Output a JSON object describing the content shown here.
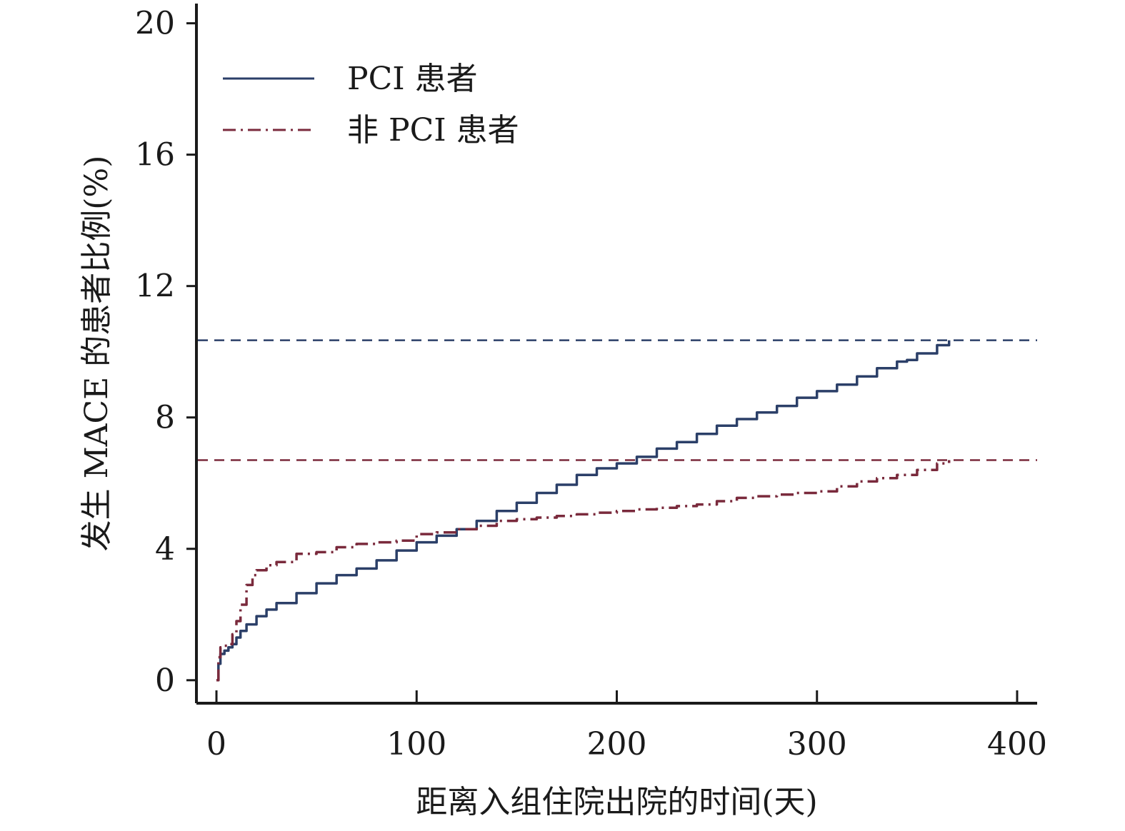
{
  "chart_data": {
    "type": "line",
    "title": "",
    "xlabel": "距离入组住院出院的时间(天)",
    "ylabel": "发生 MACE 的患者比例(%)",
    "xlim": [
      -10,
      410
    ],
    "ylim": [
      -0.7,
      20.6
    ],
    "xticks": [
      0,
      100,
      200,
      300,
      400
    ],
    "yticks": [
      0,
      4,
      8,
      12,
      16,
      20
    ],
    "grid": false,
    "legend_position": "top-left",
    "series": [
      {
        "name": "PCI 患者",
        "color": "#2b3f68",
        "style": "solid",
        "x": [
          0,
          1,
          2,
          4,
          6,
          8,
          10,
          12,
          15,
          20,
          25,
          30,
          40,
          50,
          60,
          70,
          80,
          90,
          100,
          110,
          120,
          130,
          140,
          150,
          160,
          170,
          180,
          190,
          200,
          210,
          220,
          230,
          240,
          250,
          260,
          270,
          280,
          290,
          300,
          310,
          320,
          330,
          340,
          345,
          350,
          360,
          366
        ],
        "y": [
          0,
          0.5,
          0.8,
          0.9,
          1.0,
          1.1,
          1.3,
          1.5,
          1.7,
          1.95,
          2.15,
          2.35,
          2.65,
          2.95,
          3.2,
          3.4,
          3.65,
          3.95,
          4.2,
          4.4,
          4.6,
          4.85,
          5.15,
          5.4,
          5.7,
          5.95,
          6.25,
          6.45,
          6.6,
          6.8,
          7.05,
          7.25,
          7.5,
          7.75,
          7.95,
          8.15,
          8.35,
          8.6,
          8.8,
          9.0,
          9.25,
          9.5,
          9.7,
          9.75,
          9.95,
          10.2,
          10.35
        ]
      },
      {
        "name": "非 PCI 患者",
        "color": "#7a2a3c",
        "style": "dashdot",
        "x": [
          0,
          1,
          2,
          4,
          6,
          8,
          10,
          12,
          15,
          18,
          20,
          25,
          30,
          40,
          50,
          60,
          70,
          80,
          90,
          100,
          110,
          120,
          130,
          140,
          150,
          160,
          170,
          180,
          190,
          200,
          210,
          220,
          230,
          240,
          250,
          260,
          270,
          280,
          290,
          300,
          310,
          320,
          330,
          340,
          350,
          360,
          366
        ],
        "y": [
          0,
          0.7,
          1.0,
          1.05,
          1.1,
          1.4,
          1.8,
          2.3,
          2.9,
          3.2,
          3.35,
          3.5,
          3.6,
          3.85,
          3.9,
          4.05,
          4.15,
          4.2,
          4.25,
          4.45,
          4.5,
          4.6,
          4.7,
          4.85,
          4.9,
          4.95,
          5.0,
          5.05,
          5.1,
          5.15,
          5.2,
          5.25,
          5.3,
          5.35,
          5.45,
          5.55,
          5.6,
          5.65,
          5.7,
          5.75,
          5.9,
          6.05,
          6.15,
          6.25,
          6.4,
          6.6,
          6.7
        ]
      }
    ],
    "reference_lines": [
      {
        "series": "PCI 患者",
        "y": 10.35,
        "color": "#2b3f68",
        "style": "dashed"
      },
      {
        "series": "非 PCI 患者",
        "y": 6.7,
        "color": "#7a2a3c",
        "style": "dashed"
      }
    ]
  }
}
